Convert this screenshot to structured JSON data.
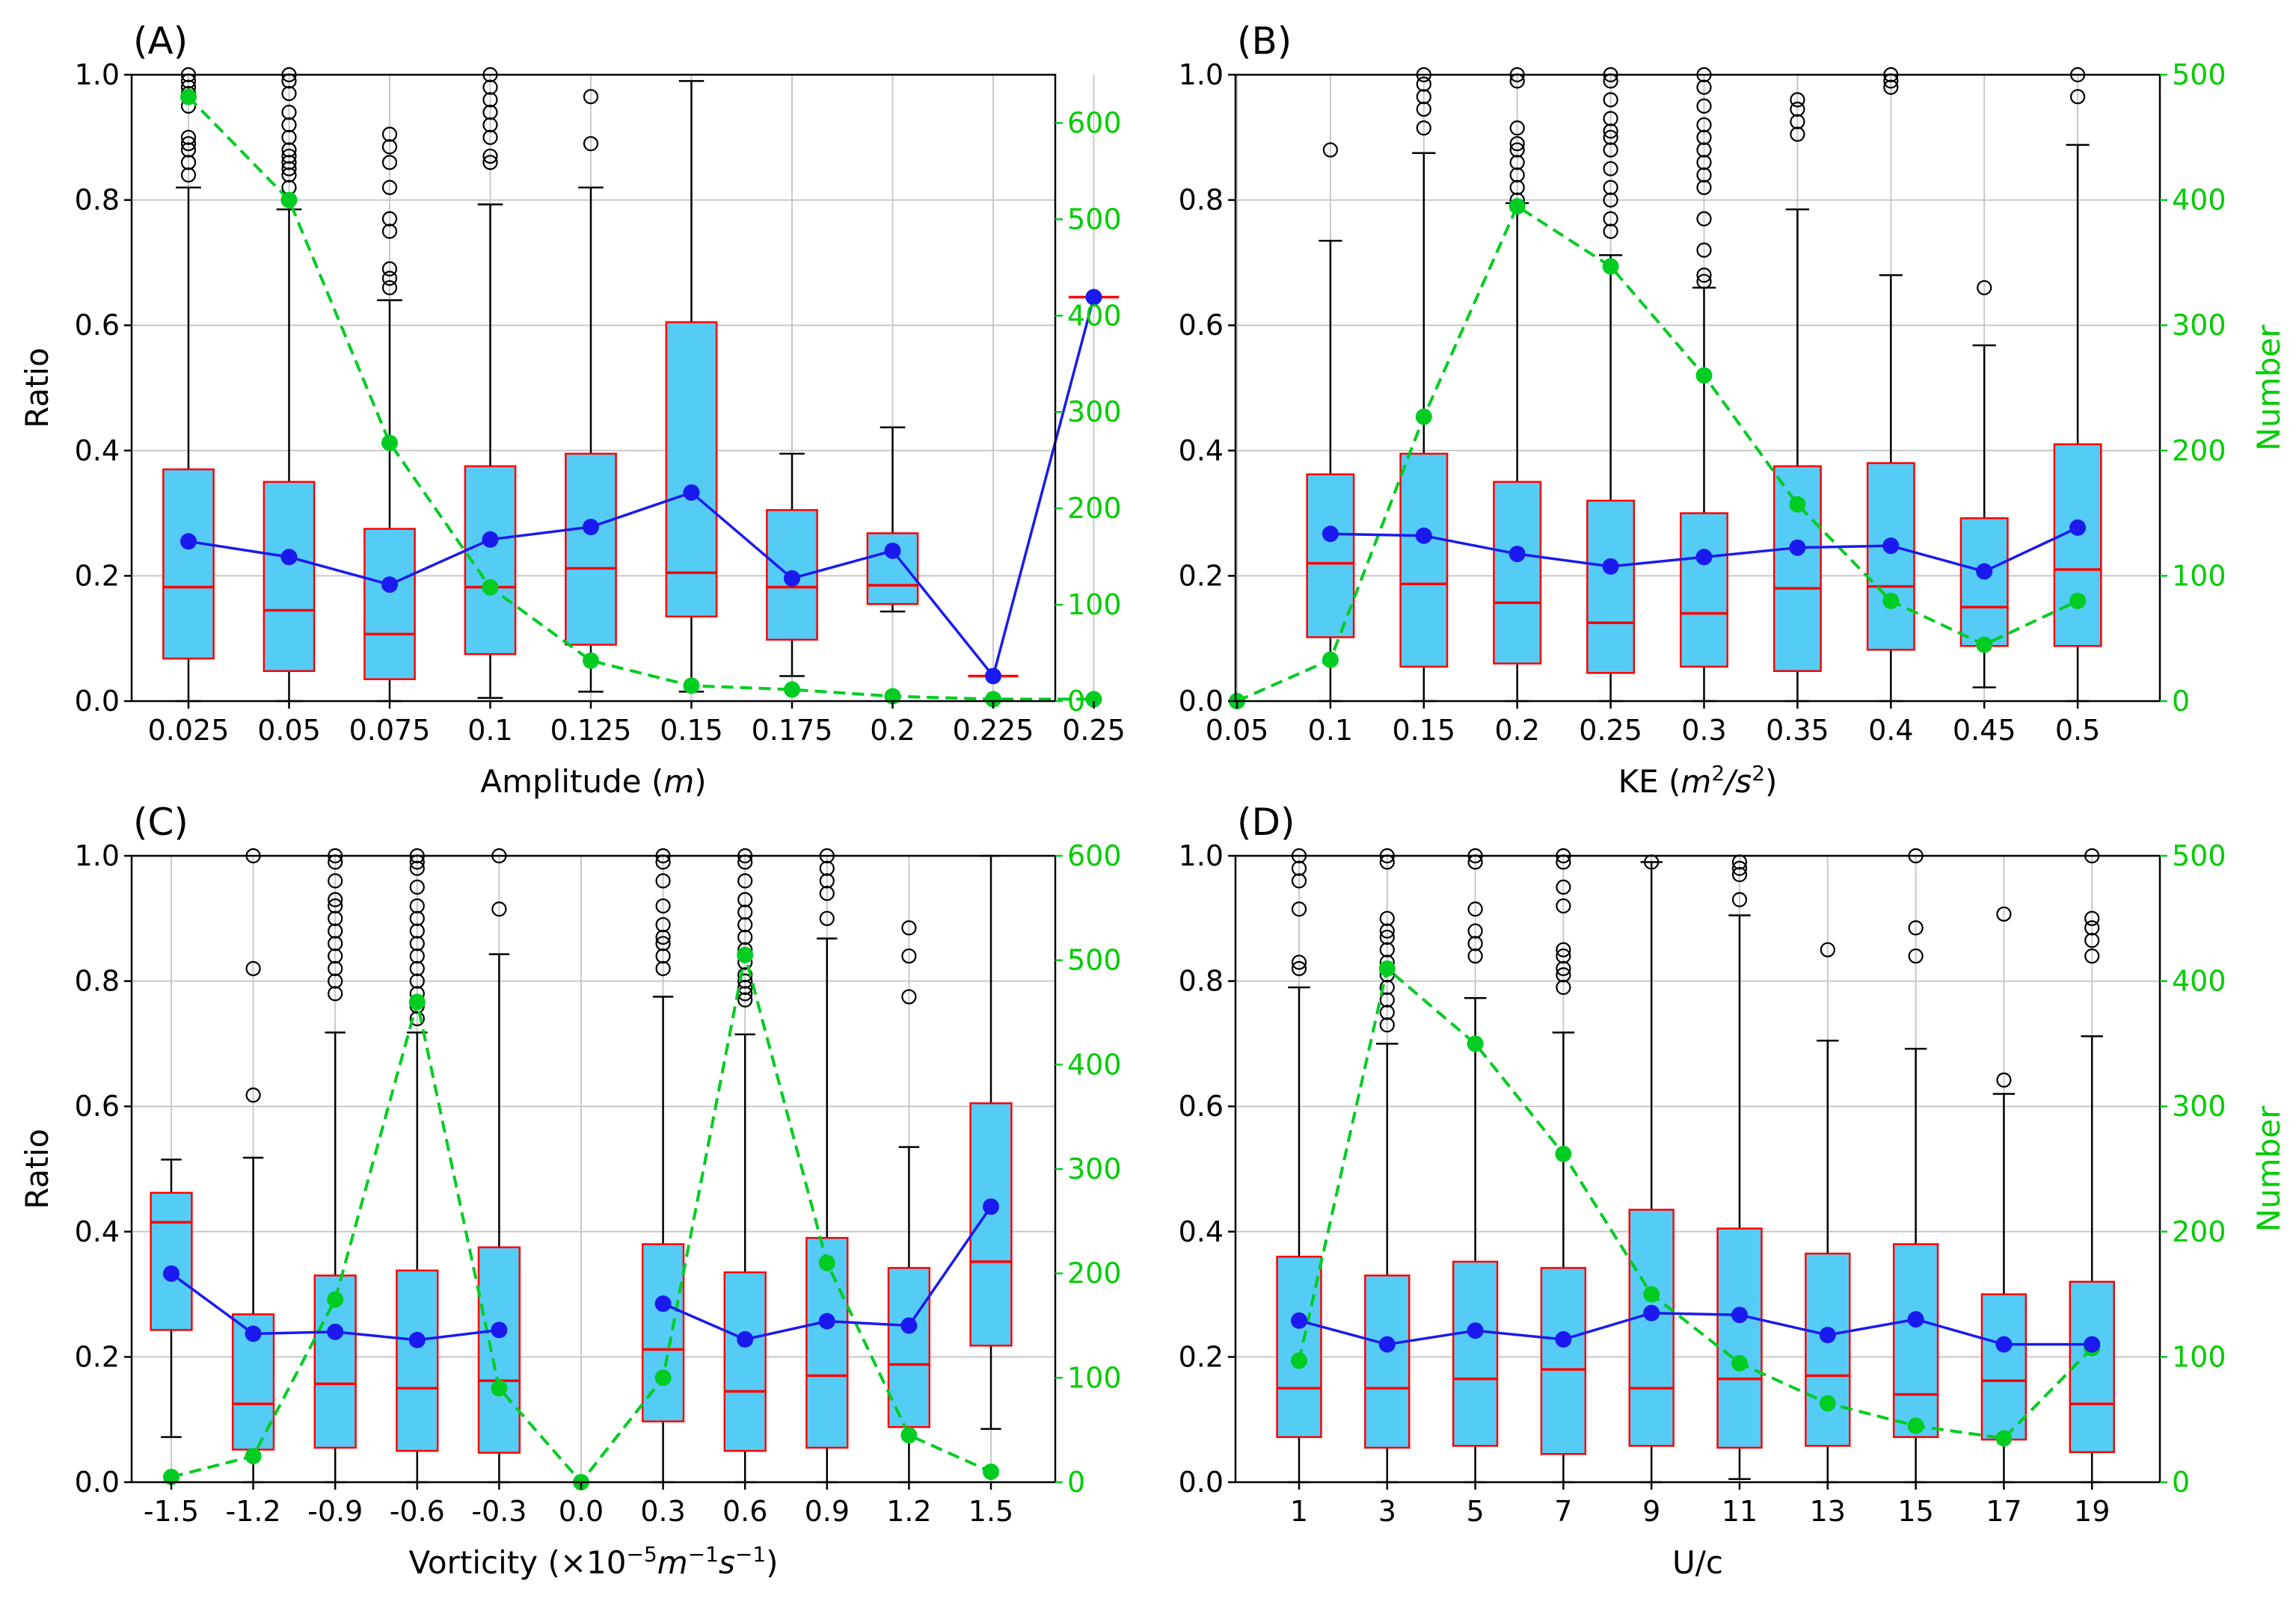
{
  "chart_data": [
    {
      "panel_label": "(A)",
      "type": "box",
      "xlabel_main": "Amplitude (",
      "xlabel_unit": "m",
      "xlabel_tail": ")",
      "ylabel": "Ratio",
      "ylabel_right": "",
      "ylim": [
        0,
        1.0
      ],
      "y_ticks": [
        "0.0",
        "0.2",
        "0.4",
        "0.6",
        "0.8",
        "1.0"
      ],
      "y2lim": [
        0,
        650
      ],
      "y2_ticks": [
        "0",
        "100",
        "200",
        "300",
        "400",
        "500",
        "600"
      ],
      "categories": [
        "0.025",
        "0.05",
        "0.075",
        "0.1",
        "0.125",
        "0.15",
        "0.175",
        "0.2",
        "0.225",
        "0.25"
      ],
      "boxes": [
        {
          "q1": 0.068,
          "median": 0.182,
          "q3": 0.37,
          "whisker_low": 0.0,
          "whisker_high": 0.82,
          "fliers": [
            0.84,
            0.86,
            0.88,
            0.89,
            0.9,
            0.95,
            0.97,
            0.98,
            0.99,
            1.0
          ]
        },
        {
          "q1": 0.048,
          "median": 0.145,
          "q3": 0.35,
          "whisker_low": 0.0,
          "whisker_high": 0.785,
          "fliers": [
            0.82,
            0.84,
            0.85,
            0.86,
            0.87,
            0.88,
            0.9,
            0.92,
            0.94,
            0.97,
            0.99,
            1.0
          ]
        },
        {
          "q1": 0.035,
          "median": 0.107,
          "q3": 0.275,
          "whisker_low": 0.0,
          "whisker_high": 0.64,
          "fliers": [
            0.66,
            0.675,
            0.69,
            0.75,
            0.77,
            0.82,
            0.86,
            0.885,
            0.905
          ]
        },
        {
          "q1": 0.075,
          "median": 0.182,
          "q3": 0.375,
          "whisker_low": 0.005,
          "whisker_high": 0.793,
          "fliers": [
            0.86,
            0.87,
            0.9,
            0.92,
            0.94,
            0.96,
            0.98,
            1.0
          ]
        },
        {
          "q1": 0.09,
          "median": 0.212,
          "q3": 0.395,
          "whisker_low": 0.015,
          "whisker_high": 0.82,
          "fliers": [
            0.89,
            0.965
          ]
        },
        {
          "q1": 0.135,
          "median": 0.205,
          "q3": 0.605,
          "whisker_low": 0.015,
          "whisker_high": 0.99,
          "fliers": []
        },
        {
          "q1": 0.098,
          "median": 0.182,
          "q3": 0.305,
          "whisker_low": 0.04,
          "whisker_high": 0.395,
          "fliers": []
        },
        {
          "q1": 0.155,
          "median": 0.185,
          "q3": 0.268,
          "whisker_low": 0.143,
          "whisker_high": 0.437,
          "fliers": []
        },
        {
          "q1": 0.04,
          "median": 0.04,
          "q3": 0.04,
          "whisker_low": 0.04,
          "whisker_high": 0.04,
          "fliers": []
        },
        {
          "q1": 0.645,
          "median": 0.645,
          "q3": 0.645,
          "whisker_low": 0.645,
          "whisker_high": 0.645,
          "fliers": []
        }
      ],
      "mean": [
        0.255,
        0.23,
        0.186,
        0.258,
        0.278,
        0.333,
        0.196,
        0.24,
        0.04,
        0.645
      ],
      "count": [
        627,
        520,
        268,
        118,
        42,
        16,
        12,
        5,
        2,
        2
      ]
    },
    {
      "panel_label": "(B)",
      "type": "box",
      "xlabel_main": "KE (",
      "xlabel_unit": "m",
      "xlabel_tail": ")",
      "ylabel": "",
      "ylabel_right": "Number",
      "ylim": [
        0,
        1.0
      ],
      "y_ticks": [
        "0.0",
        "0.2",
        "0.4",
        "0.6",
        "0.8",
        "1.0"
      ],
      "y2lim": [
        0,
        500
      ],
      "y2_ticks": [
        "0",
        "100",
        "200",
        "300",
        "400",
        "500"
      ],
      "categories": [
        "0.05",
        "0.1",
        "0.15",
        "0.2",
        "0.25",
        "0.3",
        "0.35",
        "0.4",
        "0.45",
        "0.5"
      ],
      "boxes": [
        null,
        {
          "q1": 0.102,
          "median": 0.22,
          "q3": 0.362,
          "whisker_low": 0.0,
          "whisker_high": 0.735,
          "fliers": [
            0.88
          ]
        },
        {
          "q1": 0.055,
          "median": 0.187,
          "q3": 0.395,
          "whisker_low": 0.0,
          "whisker_high": 0.875,
          "fliers": [
            0.915,
            0.945,
            0.965,
            0.985,
            1.0
          ]
        },
        {
          "q1": 0.06,
          "median": 0.157,
          "q3": 0.35,
          "whisker_low": 0.0,
          "whisker_high": 0.795,
          "fliers": [
            0.8,
            0.82,
            0.84,
            0.86,
            0.88,
            0.89,
            0.915,
            0.99,
            1.0
          ]
        },
        {
          "q1": 0.045,
          "median": 0.125,
          "q3": 0.32,
          "whisker_low": 0.0,
          "whisker_high": 0.712,
          "fliers": [
            0.75,
            0.77,
            0.8,
            0.82,
            0.85,
            0.88,
            0.9,
            0.91,
            0.93,
            0.96,
            0.99,
            1.0
          ]
        },
        {
          "q1": 0.055,
          "median": 0.14,
          "q3": 0.3,
          "whisker_low": 0.0,
          "whisker_high": 0.66,
          "fliers": [
            0.67,
            0.68,
            0.72,
            0.77,
            0.82,
            0.84,
            0.86,
            0.88,
            0.9,
            0.92,
            0.95,
            0.98,
            1.0
          ]
        },
        {
          "q1": 0.048,
          "median": 0.18,
          "q3": 0.375,
          "whisker_low": 0.0,
          "whisker_high": 0.785,
          "fliers": [
            0.905,
            0.925,
            0.945,
            0.96
          ]
        },
        {
          "q1": 0.082,
          "median": 0.183,
          "q3": 0.38,
          "whisker_low": 0.0,
          "whisker_high": 0.68,
          "fliers": [
            0.98,
            0.99,
            1.0
          ]
        },
        {
          "q1": 0.088,
          "median": 0.15,
          "q3": 0.292,
          "whisker_low": 0.022,
          "whisker_high": 0.568,
          "fliers": [
            0.66
          ]
        },
        {
          "q1": 0.088,
          "median": 0.21,
          "q3": 0.41,
          "whisker_low": 0.0,
          "whisker_high": 0.888,
          "fliers": [
            0.965,
            1.0
          ]
        }
      ],
      "mean": [
        null,
        0.267,
        0.264,
        0.235,
        0.215,
        0.23,
        0.245,
        0.248,
        0.207,
        0.277
      ],
      "count": [
        0,
        33,
        227,
        395,
        347,
        260,
        157,
        80,
        45,
        80
      ]
    },
    {
      "panel_label": "(C)",
      "type": "box",
      "xlabel_main": "Vorticity (×10",
      "xlabel_unit": "",
      "xlabel_tail": "",
      "ylabel": "Ratio",
      "ylabel_right": "",
      "ylim": [
        0,
        1.0
      ],
      "y_ticks": [
        "0.0",
        "0.2",
        "0.4",
        "0.6",
        "0.8",
        "1.0"
      ],
      "y2lim": [
        0,
        600
      ],
      "y2_ticks": [
        "0",
        "100",
        "200",
        "300",
        "400",
        "500",
        "600"
      ],
      "categories": [
        "-1.5",
        "-1.2",
        "-0.9",
        "-0.6",
        "-0.3",
        "0.0",
        "0.3",
        "0.6",
        "0.9",
        "1.2",
        "1.5"
      ],
      "boxes": [
        {
          "q1": 0.243,
          "median": 0.415,
          "q3": 0.462,
          "whisker_low": 0.072,
          "whisker_high": 0.515,
          "fliers": []
        },
        {
          "q1": 0.052,
          "median": 0.125,
          "q3": 0.268,
          "whisker_low": 0.0,
          "whisker_high": 0.518,
          "fliers": [
            0.618,
            0.82,
            1.0
          ]
        },
        {
          "q1": 0.055,
          "median": 0.157,
          "q3": 0.33,
          "whisker_low": 0.0,
          "whisker_high": 0.718,
          "fliers": [
            0.78,
            0.8,
            0.82,
            0.84,
            0.86,
            0.88,
            0.9,
            0.92,
            0.93,
            0.96,
            0.99,
            1.0
          ]
        },
        {
          "q1": 0.05,
          "median": 0.15,
          "q3": 0.338,
          "whisker_low": 0.0,
          "whisker_high": 0.718,
          "fliers": [
            0.74,
            0.76,
            0.78,
            0.8,
            0.82,
            0.84,
            0.86,
            0.88,
            0.9,
            0.92,
            0.95,
            0.98,
            0.99,
            1.0
          ]
        },
        {
          "q1": 0.047,
          "median": 0.162,
          "q3": 0.375,
          "whisker_low": 0.0,
          "whisker_high": 0.843,
          "fliers": [
            0.915,
            1.0
          ]
        },
        null,
        {
          "q1": 0.097,
          "median": 0.212,
          "q3": 0.38,
          "whisker_low": 0.0,
          "whisker_high": 0.775,
          "fliers": [
            0.82,
            0.84,
            0.86,
            0.87,
            0.89,
            0.92,
            0.96,
            0.99,
            1.0
          ]
        },
        {
          "q1": 0.05,
          "median": 0.145,
          "q3": 0.335,
          "whisker_low": 0.0,
          "whisker_high": 0.715,
          "fliers": [
            0.77,
            0.78,
            0.79,
            0.8,
            0.81,
            0.83,
            0.85,
            0.87,
            0.89,
            0.91,
            0.93,
            0.96,
            0.99,
            1.0
          ]
        },
        {
          "q1": 0.055,
          "median": 0.17,
          "q3": 0.39,
          "whisker_low": 0.0,
          "whisker_high": 0.868,
          "fliers": [
            0.9,
            0.94,
            0.96,
            0.98,
            1.0
          ]
        },
        {
          "q1": 0.088,
          "median": 0.188,
          "q3": 0.342,
          "whisker_low": 0.0,
          "whisker_high": 0.535,
          "fliers": [
            0.775,
            0.84,
            0.885
          ]
        },
        {
          "q1": 0.218,
          "median": 0.352,
          "q3": 0.605,
          "whisker_low": 0.085,
          "whisker_high": 1.0,
          "fliers": []
        }
      ],
      "mean": [
        0.333,
        0.237,
        0.24,
        0.227,
        0.243,
        null,
        0.285,
        0.228,
        0.257,
        0.25,
        0.44
      ],
      "count": [
        5,
        25,
        175,
        460,
        90,
        0,
        100,
        505,
        210,
        45,
        10
      ]
    },
    {
      "panel_label": "(D)",
      "type": "box",
      "xlabel_main": "U/c",
      "xlabel_unit": "",
      "xlabel_tail": "",
      "ylabel": "",
      "ylabel_right": "Number",
      "ylim": [
        0,
        1.0
      ],
      "y_ticks": [
        "0.0",
        "0.2",
        "0.4",
        "0.6",
        "0.8",
        "1.0"
      ],
      "y2lim": [
        0,
        500
      ],
      "y2_ticks": [
        "0",
        "100",
        "200",
        "300",
        "400",
        "500"
      ],
      "categories": [
        "1",
        "3",
        "5",
        "7",
        "9",
        "11",
        "13",
        "15",
        "17",
        "19"
      ],
      "boxes": [
        {
          "q1": 0.072,
          "median": 0.15,
          "q3": 0.36,
          "whisker_low": 0.0,
          "whisker_high": 0.79,
          "fliers": [
            0.82,
            0.83,
            0.915,
            0.96,
            0.98,
            1.0
          ]
        },
        {
          "q1": 0.055,
          "median": 0.15,
          "q3": 0.33,
          "whisker_low": 0.0,
          "whisker_high": 0.7,
          "fliers": [
            0.73,
            0.75,
            0.77,
            0.79,
            0.81,
            0.83,
            0.85,
            0.87,
            0.88,
            0.9,
            0.99,
            1.0
          ]
        },
        {
          "q1": 0.058,
          "median": 0.165,
          "q3": 0.352,
          "whisker_low": 0.0,
          "whisker_high": 0.773,
          "fliers": [
            0.84,
            0.86,
            0.88,
            0.915,
            0.99,
            1.0
          ]
        },
        {
          "q1": 0.045,
          "median": 0.18,
          "q3": 0.342,
          "whisker_low": 0.0,
          "whisker_high": 0.718,
          "fliers": [
            0.79,
            0.81,
            0.82,
            0.84,
            0.85,
            0.92,
            0.95,
            0.99,
            1.0
          ]
        },
        {
          "q1": 0.058,
          "median": 0.15,
          "q3": 0.435,
          "whisker_low": 0.0,
          "whisker_high": 0.99,
          "fliers": [
            0.99
          ]
        },
        {
          "q1": 0.055,
          "median": 0.165,
          "q3": 0.405,
          "whisker_low": 0.005,
          "whisker_high": 0.905,
          "fliers": [
            0.93,
            0.97,
            0.98,
            0.99
          ]
        },
        {
          "q1": 0.058,
          "median": 0.17,
          "q3": 0.365,
          "whisker_low": 0.0,
          "whisker_high": 0.705,
          "fliers": [
            0.85
          ]
        },
        {
          "q1": 0.072,
          "median": 0.14,
          "q3": 0.38,
          "whisker_low": 0.0,
          "whisker_high": 0.692,
          "fliers": [
            0.84,
            0.885,
            1.0
          ]
        },
        {
          "q1": 0.068,
          "median": 0.162,
          "q3": 0.3,
          "whisker_low": 0.0,
          "whisker_high": 0.62,
          "fliers": [
            0.642,
            0.907
          ]
        },
        {
          "q1": 0.048,
          "median": 0.125,
          "q3": 0.32,
          "whisker_low": 0.0,
          "whisker_high": 0.712,
          "fliers": [
            0.84,
            0.865,
            0.885,
            0.9,
            1.0
          ]
        }
      ],
      "mean": [
        0.258,
        0.22,
        0.242,
        0.228,
        0.27,
        0.267,
        0.235,
        0.26,
        0.22,
        0.22
      ],
      "count": [
        97,
        410,
        350,
        262,
        150,
        95,
        63,
        45,
        35,
        107
      ]
    }
  ],
  "colors": {
    "box_fill": "#55ccf5",
    "box_edge": "#ff0000",
    "median": "#ff0000",
    "mean_line": "#1a1aee",
    "count_line": "#00cc22",
    "grid": "#c8c8c8",
    "axis": "#000000",
    "flier": "#000000"
  }
}
